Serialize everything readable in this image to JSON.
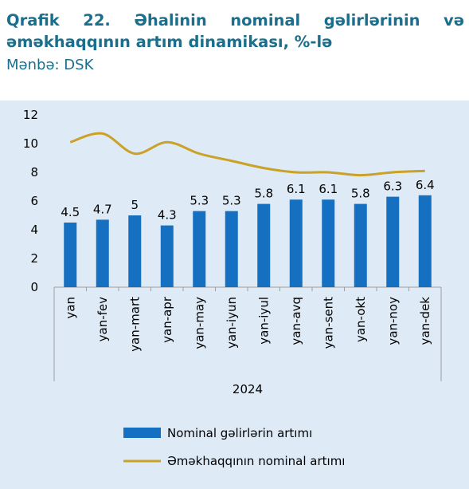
{
  "header": {
    "title": "Qrafik 22. Əhalinin nominal gəlirlərinin və əməkhaqqının artım dinamikası, %-lə",
    "source": "Mənbə: DSK"
  },
  "chart_data": {
    "type": "bar+line",
    "categories": [
      "yan",
      "yan-fev",
      "yan-mart",
      "yan-apr",
      "yan-may",
      "yan-iyun",
      "yan-iyul",
      "yan-avq",
      "yan-sent",
      "yan-okt",
      "yan-noy",
      "yan-dek"
    ],
    "group_label": "2024",
    "series": [
      {
        "name": "Nominal gəlirlərin  artımı",
        "kind": "bar",
        "color": "#1570c2",
        "values": [
          4.5,
          4.7,
          5,
          4.3,
          5.3,
          5.3,
          5.8,
          6.1,
          6.1,
          5.8,
          6.3,
          6.4
        ],
        "labels": [
          "4.5",
          "4.7",
          "5",
          "4.3",
          "5.3",
          "5.3",
          "5.8",
          "6.1",
          "6.1",
          "5.8",
          "6.3",
          "6.4"
        ]
      },
      {
        "name": "Əməkhaqqının nominal artımı",
        "kind": "line",
        "color": "#c9a227",
        "values": [
          10.1,
          10.7,
          9.3,
          10.1,
          9.3,
          8.8,
          8.3,
          8.0,
          8.0,
          7.8,
          8.0,
          8.1
        ]
      }
    ],
    "ylim": [
      0,
      12
    ],
    "yticks": [
      "0",
      "2",
      "4",
      "6",
      "8",
      "10",
      "12"
    ],
    "grid": false,
    "legend_position": "bottom"
  }
}
